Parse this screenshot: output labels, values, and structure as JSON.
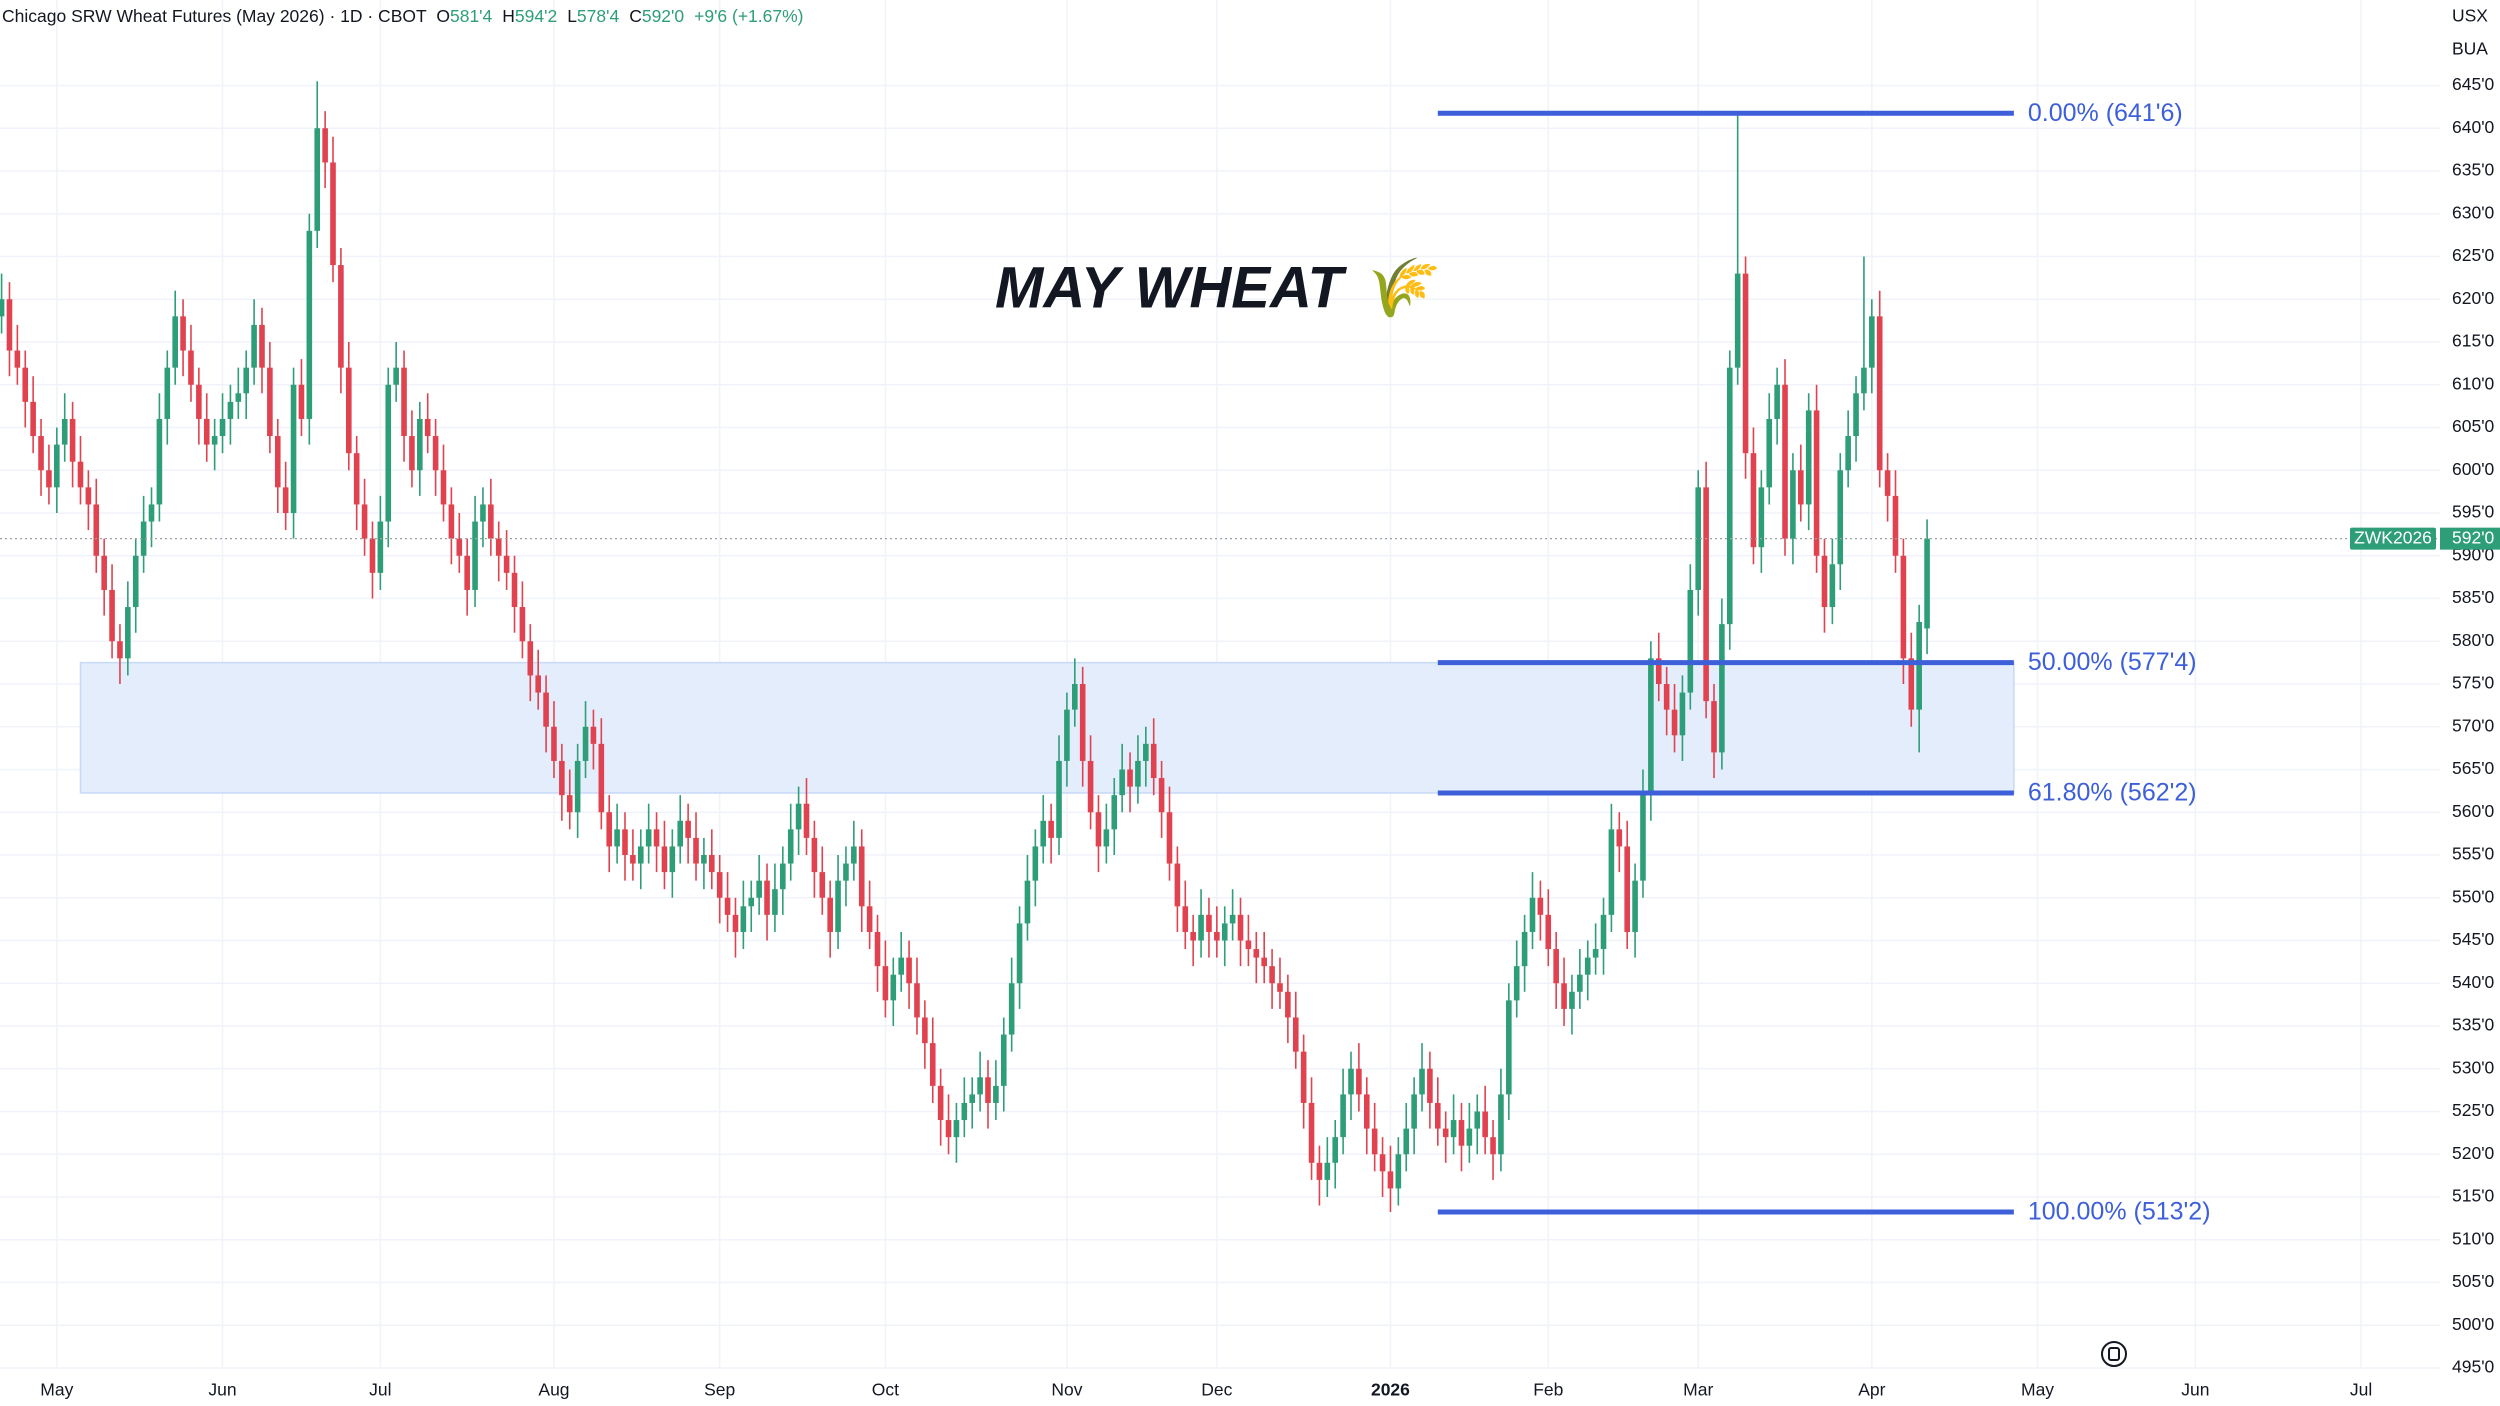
{
  "chart_data": {
    "type": "candlestick",
    "title": "Chicago SRW Wheat Futures (May 2026) · 1D · CBOT",
    "ohlc_header": [
      {
        "key": "O",
        "value": "581'4"
      },
      {
        "key": "H",
        "value": "594'2"
      },
      {
        "key": "L",
        "value": "578'4"
      },
      {
        "key": "C",
        "value": "592'0"
      }
    ],
    "change": "+9'6 (+1.67%)",
    "units": [
      "USX",
      "BUA"
    ],
    "annotation": "MAY WHEAT 🌾",
    "up_color": "#2e9e78",
    "down_color": "#e0434f",
    "fib_color": "#3d5fd9",
    "zone_color": "#e3edfc",
    "grid": true,
    "last": {
      "value": 592,
      "label": "592'0",
      "symbol": "ZWK2026"
    },
    "xlim": [
      -0.2,
      309
    ],
    "ylim": [
      495,
      655
    ],
    "xticks": [
      {
        "value": 7,
        "label": "May"
      },
      {
        "value": 28,
        "label": "Jun"
      },
      {
        "value": 48,
        "label": "Jul"
      },
      {
        "value": 70,
        "label": "Aug"
      },
      {
        "value": 91,
        "label": "Sep"
      },
      {
        "value": 112,
        "label": "Oct"
      },
      {
        "value": 135,
        "label": "Nov"
      },
      {
        "value": 154,
        "label": "Dec"
      },
      {
        "value": 176,
        "label": "2026"
      },
      {
        "value": 196,
        "label": "Feb"
      },
      {
        "value": 215,
        "label": "Mar"
      },
      {
        "value": 237,
        "label": "Apr"
      },
      {
        "value": 258,
        "label": "May"
      },
      {
        "value": 278,
        "label": "Jun"
      },
      {
        "value": 299,
        "label": "Jul"
      }
    ],
    "yticks": [
      {
        "value": 645,
        "label": "645'0"
      },
      {
        "value": 640,
        "label": "640'0"
      },
      {
        "value": 635,
        "label": "635'0"
      },
      {
        "value": 630,
        "label": "630'0"
      },
      {
        "value": 625,
        "label": "625'0"
      },
      {
        "value": 620,
        "label": "620'0"
      },
      {
        "value": 615,
        "label": "615'0"
      },
      {
        "value": 610,
        "label": "610'0"
      },
      {
        "value": 605,
        "label": "605'0"
      },
      {
        "value": 600,
        "label": "600'0"
      },
      {
        "value": 595,
        "label": "595'0"
      },
      {
        "value": 590,
        "label": "590'0"
      },
      {
        "value": 585,
        "label": "585'0"
      },
      {
        "value": 580,
        "label": "580'0"
      },
      {
        "value": 575,
        "label": "575'0"
      },
      {
        "value": 570,
        "label": "570'0"
      },
      {
        "value": 565,
        "label": "565'0"
      },
      {
        "value": 560,
        "label": "560'0"
      },
      {
        "value": 555,
        "label": "555'0"
      },
      {
        "value": 550,
        "label": "550'0"
      },
      {
        "value": 545,
        "label": "545'0"
      },
      {
        "value": 540,
        "label": "540'0"
      },
      {
        "value": 535,
        "label": "535'0"
      },
      {
        "value": 530,
        "label": "530'0"
      },
      {
        "value": 525,
        "label": "525'0"
      },
      {
        "value": 520,
        "label": "520'0"
      },
      {
        "value": 515,
        "label": "515'0"
      },
      {
        "value": 510,
        "label": "510'0"
      },
      {
        "value": 505,
        "label": "505'0"
      },
      {
        "value": 500,
        "label": "500'0"
      },
      {
        "value": 495,
        "label": "495'0"
      }
    ],
    "fib_x": [
      182,
      255
    ],
    "fib_levels": [
      {
        "value": 641.75,
        "label": "0.00% (641'6)"
      },
      {
        "value": 577.5,
        "label": "50.00% (577'4)"
      },
      {
        "value": 562.25,
        "label": "61.80% (562'2)"
      },
      {
        "value": 513.25,
        "label": "100.00% (513'2)"
      }
    ],
    "zone": {
      "x": [
        10,
        255
      ],
      "y": [
        562.25,
        577.5
      ]
    },
    "open": [
      618,
      620,
      614,
      612,
      608,
      604,
      600,
      598,
      603,
      606,
      601,
      598,
      596,
      590,
      586,
      580,
      578,
      584,
      590,
      594,
      596,
      606,
      612,
      618,
      614,
      610,
      606,
      603,
      604,
      606,
      608,
      609,
      612,
      617,
      612,
      604,
      598,
      595,
      610,
      606,
      628,
      640,
      636,
      624,
      612,
      602,
      596,
      592,
      588,
      594,
      610,
      612,
      604,
      600,
      606,
      604,
      600,
      596,
      592,
      590,
      586,
      594,
      596,
      592,
      590,
      588,
      584,
      580,
      576,
      574,
      570,
      566,
      562,
      560,
      566,
      570,
      568,
      560,
      556,
      558,
      555,
      554,
      556,
      558,
      556,
      553,
      556,
      559,
      557,
      554,
      555,
      553,
      550,
      548,
      546,
      549,
      550,
      552,
      548,
      551,
      554,
      558,
      561,
      557,
      553,
      550,
      546,
      552,
      554,
      556,
      549,
      546,
      542,
      538,
      541,
      543,
      540,
      536,
      533,
      528,
      524,
      522,
      524,
      526,
      527,
      529,
      526,
      528,
      534,
      540,
      547,
      552,
      556,
      559,
      557,
      566,
      572,
      575,
      566,
      560,
      556,
      558,
      562,
      565,
      563,
      566,
      568,
      564,
      560,
      554,
      549,
      546,
      545,
      548,
      546,
      545,
      547,
      548,
      545,
      544,
      543,
      542,
      540,
      539,
      536,
      532,
      526,
      519,
      517,
      519,
      522,
      527,
      530,
      527,
      523,
      520,
      518,
      516,
      520,
      523,
      527,
      530,
      526,
      523,
      522,
      524,
      521,
      523,
      525,
      522,
      520,
      527,
      538,
      542,
      546,
      550,
      548,
      544,
      540,
      537,
      539,
      541,
      543,
      544,
      548,
      558,
      556,
      546,
      552,
      562,
      578,
      575,
      572,
      569,
      574,
      586,
      598,
      573,
      567,
      582,
      612,
      623,
      602,
      591,
      598,
      606,
      610,
      592,
      600,
      596,
      607,
      590,
      584,
      589,
      600,
      604,
      609,
      612,
      618,
      600,
      597,
      590,
      578,
      572,
      581.5
    ],
    "high": [
      623,
      622,
      617,
      614,
      611,
      606,
      603,
      605,
      609,
      608,
      604,
      600,
      599,
      592,
      589,
      582,
      587,
      592,
      597,
      598,
      609,
      614,
      621,
      620,
      617,
      612,
      609,
      606,
      609,
      610,
      612,
      614,
      620,
      619,
      615,
      606,
      601,
      612,
      613,
      630,
      645.5,
      642,
      639,
      626,
      615,
      604,
      599,
      594,
      597,
      612,
      615,
      614,
      607,
      608,
      609,
      606,
      603,
      598,
      595,
      592,
      597,
      598,
      599,
      594,
      593,
      590,
      587,
      582,
      579,
      576,
      573,
      568,
      565,
      568,
      573,
      572,
      571,
      562,
      561,
      560,
      558,
      558,
      561,
      560,
      559,
      558,
      562,
      561,
      560,
      557,
      558,
      555,
      553,
      550,
      552,
      552,
      555,
      554,
      554,
      556,
      561,
      563,
      564,
      559,
      556,
      552,
      555,
      556,
      559,
      558,
      552,
      548,
      545,
      543,
      546,
      545,
      543,
      538,
      536,
      530,
      527,
      526,
      529,
      529,
      532,
      531,
      531,
      536,
      543,
      549,
      555,
      558,
      562,
      561,
      569,
      574,
      578,
      577,
      569,
      562,
      561,
      564,
      568,
      567,
      569,
      570,
      571,
      566,
      563,
      556,
      552,
      548,
      551,
      550,
      549,
      549,
      551,
      550,
      548,
      546,
      546,
      544,
      543,
      541,
      539,
      534,
      529,
      521,
      522,
      524,
      530,
      532,
      533,
      529,
      526,
      522,
      521,
      522,
      526,
      529,
      533,
      532,
      529,
      525,
      527,
      526,
      526,
      527,
      528,
      524,
      530,
      540,
      545,
      548,
      553,
      552,
      551,
      546,
      543,
      541,
      544,
      545,
      547,
      550,
      561,
      560,
      559,
      554,
      565,
      580,
      581,
      577,
      575,
      576,
      589,
      600,
      601,
      575,
      585,
      614,
      641.75,
      625,
      605,
      600,
      609,
      612,
      613,
      602,
      603,
      609,
      610,
      592,
      592,
      602,
      607,
      611,
      625,
      620,
      621,
      602,
      600,
      592,
      581,
      584.25,
      594.25
    ],
    "low": [
      616,
      611,
      610,
      605,
      602,
      597,
      596,
      595,
      601,
      598,
      596,
      593,
      588,
      583,
      578,
      575,
      576,
      581,
      588,
      591,
      594,
      603,
      610,
      611,
      608,
      603,
      601,
      600,
      602,
      603,
      606,
      606,
      610,
      609,
      602,
      595,
      593,
      592,
      604,
      603,
      626,
      633,
      622,
      609,
      600,
      593,
      590,
      585,
      586,
      591,
      608,
      601,
      598,
      597,
      602,
      597,
      594,
      589,
      588,
      583,
      584,
      591,
      590,
      587,
      586,
      581,
      578,
      573,
      572,
      567,
      564,
      559,
      558,
      557,
      564,
      565,
      558,
      553,
      554,
      552,
      552,
      551,
      554,
      553,
      551,
      550,
      554,
      554,
      552,
      551,
      551,
      547,
      546,
      543,
      544,
      546,
      548,
      545,
      546,
      548,
      552,
      555,
      555,
      550,
      548,
      543,
      544,
      549,
      552,
      546,
      544,
      539,
      536,
      535,
      539,
      537,
      534,
      530,
      526,
      521,
      520,
      519,
      522,
      523,
      525,
      523,
      524,
      525,
      532,
      537,
      545,
      549,
      554,
      554,
      555,
      563,
      570,
      563,
      558,
      553,
      554,
      555,
      560,
      560,
      561,
      563,
      562,
      557,
      552,
      546,
      544,
      542,
      543,
      543,
      543,
      542,
      545,
      542,
      542,
      540,
      540,
      537,
      537,
      533,
      530,
      523,
      517,
      514,
      515,
      516,
      520,
      524,
      525,
      520,
      518,
      515,
      513.25,
      514,
      518,
      520,
      525,
      523,
      521,
      519,
      520,
      518,
      519,
      520,
      520,
      517,
      518,
      524,
      536,
      539,
      544,
      545,
      542,
      537,
      535,
      534,
      537,
      538,
      541,
      541,
      546,
      553,
      544,
      543,
      550,
      559,
      573,
      569,
      567,
      566,
      572,
      583,
      571,
      564,
      565,
      579,
      610,
      599,
      589,
      588,
      596,
      603,
      590,
      589,
      594,
      593,
      588,
      581,
      582,
      586,
      598,
      601,
      607,
      609,
      598,
      594,
      588,
      575,
      570,
      567,
      578.5
    ],
    "close": [
      620,
      614,
      612,
      608,
      604,
      600,
      598,
      603,
      606,
      601,
      598,
      596,
      590,
      586,
      580,
      578,
      584,
      590,
      594,
      596,
      606,
      612,
      618,
      614,
      610,
      606,
      603,
      604,
      606,
      608,
      609,
      612,
      617,
      612,
      604,
      598,
      595,
      610,
      606,
      628,
      640,
      636,
      624,
      612,
      602,
      596,
      592,
      588,
      594,
      610,
      612,
      604,
      600,
      606,
      604,
      600,
      596,
      592,
      590,
      586,
      594,
      596,
      592,
      590,
      588,
      584,
      580,
      576,
      574,
      570,
      566,
      562,
      560,
      566,
      570,
      568,
      560,
      556,
      558,
      555,
      554,
      556,
      558,
      556,
      553,
      556,
      559,
      557,
      554,
      555,
      553,
      550,
      548,
      546,
      549,
      550,
      552,
      548,
      551,
      554,
      558,
      561,
      557,
      553,
      550,
      546,
      552,
      554,
      556,
      549,
      546,
      542,
      538,
      541,
      543,
      540,
      536,
      533,
      528,
      524,
      522,
      524,
      526,
      527,
      529,
      526,
      528,
      534,
      540,
      547,
      552,
      556,
      559,
      557,
      566,
      572,
      575,
      566,
      560,
      556,
      558,
      562,
      565,
      563,
      566,
      568,
      564,
      560,
      554,
      549,
      546,
      545,
      548,
      546,
      545,
      547,
      548,
      545,
      544,
      543,
      542,
      540,
      539,
      536,
      532,
      526,
      519,
      517,
      519,
      522,
      527,
      530,
      527,
      523,
      520,
      518,
      516,
      520,
      523,
      527,
      530,
      526,
      523,
      522,
      524,
      521,
      523,
      525,
      522,
      520,
      527,
      538,
      542,
      546,
      550,
      548,
      544,
      540,
      537,
      539,
      541,
      543,
      544,
      548,
      558,
      556,
      546,
      552,
      562,
      578,
      575,
      572,
      569,
      574,
      586,
      598,
      573,
      567,
      582,
      612,
      623,
      602,
      591,
      598,
      606,
      610,
      592,
      600,
      596,
      607,
      590,
      584,
      589,
      600,
      604,
      609,
      612,
      618,
      600,
      597,
      590,
      578,
      572,
      582.25,
      592
    ]
  }
}
